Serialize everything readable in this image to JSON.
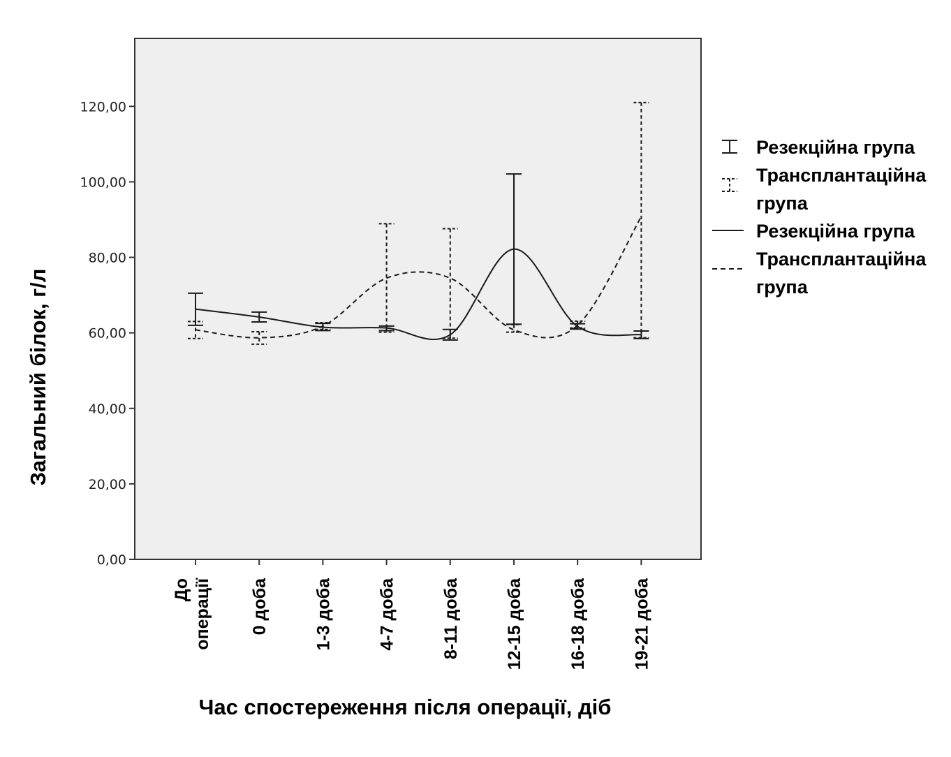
{
  "chart_data": {
    "type": "line",
    "xlabel": "Час спостереження після операції, діб",
    "ylabel": "Загальний білок, г/л",
    "ylim": [
      0,
      138
    ],
    "yticks": [
      0,
      20,
      40,
      60,
      80,
      100,
      120
    ],
    "ytick_labels": [
      "0,00",
      "20,00",
      "40,00",
      "60,00",
      "80,00",
      "100,00",
      "120,00"
    ],
    "categories": [
      "До операції",
      "0 доба",
      "1-3 доба",
      "4-7 доба",
      "8-11 доба",
      "12-15 доба",
      "16-18 доба",
      "19-21 доба"
    ],
    "grid": false,
    "legend_position": "right",
    "series": [
      {
        "name": "Резекційна група",
        "style": "solid",
        "values": [
          66.3,
          64.2,
          61.5,
          61.3,
          59.5,
          82.2,
          61.7,
          59.5
        ],
        "error_low": [
          62.0,
          62.9,
          60.6,
          60.6,
          58.1,
          62.3,
          61.0,
          58.5
        ],
        "error_high": [
          70.5,
          65.5,
          62.5,
          61.8,
          60.9,
          102.1,
          62.4,
          60.5
        ]
      },
      {
        "name": "Трансплантаційна група",
        "style": "dashed",
        "values": [
          60.8,
          58.7,
          61.8,
          74.5,
          74.5,
          60.8,
          62.0,
          90.8
        ],
        "error_low": [
          58.5,
          57.0,
          60.9,
          60.2,
          58.6,
          60.2,
          61.3,
          58.7
        ],
        "error_high": [
          63.0,
          60.3,
          62.7,
          88.9,
          87.6,
          62.2,
          63.1,
          121.0
        ]
      }
    ],
    "legend_entries": [
      "Резекційна група",
      "Трансплантаційна група",
      "Резекційна група",
      "Трансплантаційна група"
    ],
    "colors": {
      "line": "#1a1a1a",
      "plot_background": "#efefef",
      "frame": "#333333"
    }
  }
}
